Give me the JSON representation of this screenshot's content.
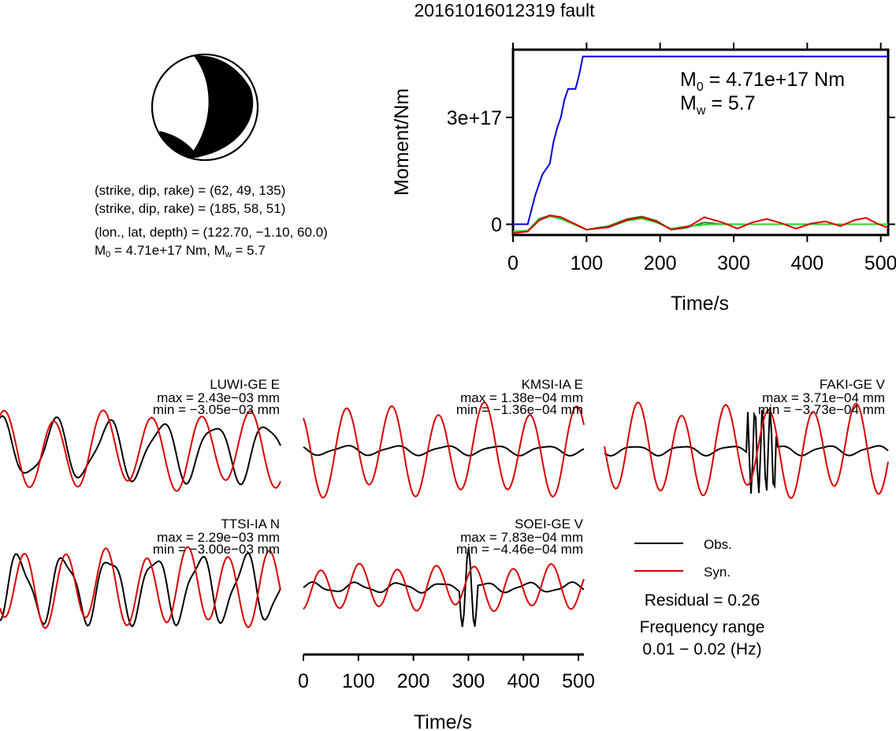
{
  "title": "20161016012319 fault",
  "info": {
    "line1": "(strike, dip, rake) = (62, 49, 135)",
    "line2": "(strike, dip, rake) = (185, 58, 51)",
    "line3": "(lon., lat, depth) = (122.70, −1.10, 60.0)",
    "m0_label": "M",
    "m0_sub": "0",
    "m0_value": " = 4.71e+17 Nm, M",
    "mw_sub": "w",
    "mw_value": " = 5.7"
  },
  "moment_labels": {
    "m0_main": "M",
    "m0_sub": "0",
    "m0_rest": " = 4.71e+17 Nm",
    "mw_main": "M",
    "mw_sub": "w",
    "mw_rest": " = 5.7"
  },
  "colors": {
    "obs": "#000000",
    "syn": "#dd0000",
    "moment": "#0000dd",
    "smooth": "#22dd22"
  },
  "chart_data": [
    {
      "type": "line",
      "id": "moment-rate",
      "xlabel": "Time/s",
      "ylabel": "Moment/Nm",
      "xlim": [
        0,
        510
      ],
      "ylim": [
        -3e+16,
        4.9e+17
      ],
      "xticks": [
        0,
        100,
        200,
        300,
        400,
        500
      ],
      "yticks": [
        {
          "v": 0,
          "label": "0"
        },
        {
          "v": 3e+17,
          "label": "3e+17"
        }
      ],
      "series": [
        {
          "key": "cumulative",
          "color": "#0000dd",
          "x": [
            0,
            20,
            30,
            40,
            50,
            55,
            60,
            65,
            70,
            75,
            80,
            85,
            90,
            95,
            100,
            510
          ],
          "y": [
            0,
            0,
            8e+16,
            1.4e+17,
            1.7e+17,
            2.3e+17,
            2.7e+17,
            3e+17,
            3.5e+17,
            3.8e+17,
            3.8e+17,
            3.8e+17,
            4.2e+17,
            4.71e+17,
            4.71e+17,
            4.71e+17
          ]
        },
        {
          "key": "rate-obs",
          "color": "#2a7a2a",
          "x": [
            0,
            20,
            35,
            50,
            65,
            80,
            100,
            130,
            155,
            175,
            195,
            215,
            235,
            260,
            285,
            300
          ],
          "y": [
            -2e+16,
            -1.8e+16,
            1.5e+16,
            2.5e+16,
            1.8e+16,
            5000000000000000.0,
            -1.5e+16,
            -5000000000000000.0,
            1.5e+16,
            2.2e+16,
            1e+16,
            -1.5e+16,
            -1e+16,
            5000000000000000.0,
            0,
            0
          ]
        },
        {
          "key": "rate-smooth",
          "color": "#22dd22",
          "x": [
            0,
            20,
            35,
            50,
            65,
            80,
            100,
            130,
            155,
            175,
            195,
            215,
            240,
            270,
            300,
            510
          ],
          "y": [
            -2e+16,
            -1.8e+16,
            1.2e+16,
            2.2e+16,
            1.5e+16,
            2000000000000000.0,
            -1.5e+16,
            -8000000000000000.0,
            1e+16,
            1.6e+16,
            5000000000000000.0,
            -1.2e+16,
            -5000000000000000.0,
            0,
            0,
            0
          ]
        },
        {
          "key": "rate-syn",
          "color": "#dd0000",
          "x": [
            0,
            20,
            35,
            50,
            65,
            80,
            100,
            130,
            155,
            175,
            195,
            215,
            240,
            260,
            285,
            305,
            325,
            345,
            365,
            385,
            405,
            425,
            445,
            465,
            480,
            495,
            510
          ],
          "y": [
            -2.5e+16,
            -2e+16,
            1e+16,
            2.5e+16,
            2e+16,
            5000000000000000.0,
            -1.5e+16,
            -8000000000000000.0,
            1.2e+16,
            2e+16,
            8000000000000000.0,
            -1.5e+16,
            -5000000000000000.0,
            2e+16,
            5000000000000000.0,
            -1.2e+16,
            5000000000000000.0,
            1.5e+16,
            3000000000000000.0,
            -1.2e+16,
            2000000000000000.0,
            8000000000000000.0,
            -5000000000000000.0,
            1.2e+16,
            1.8e+16,
            2000000000000000.0,
            -1e+16
          ]
        }
      ]
    },
    {
      "type": "line",
      "id": "waveforms",
      "xlabel": "Time/s",
      "xlim": [
        0,
        510
      ],
      "xticks": [
        0,
        100,
        200,
        300,
        400,
        500
      ],
      "stations": [
        {
          "name": "LUWI-GE E",
          "max": "max = 2.43e−03 mm",
          "min": "min = −3.05e−03 mm"
        },
        {
          "name": "KMSI-IA E",
          "max": "max = 1.38e−04 mm",
          "min": "min = −1.36e−04 mm"
        },
        {
          "name": "FAKI-GE V",
          "max": "max = 3.71e−04 mm",
          "min": "min = −3.73e−04 mm"
        },
        {
          "name": "TTSI-IA N",
          "max": "max = 2.29e−03 mm",
          "min": "min = −3.00e−03 mm"
        },
        {
          "name": "SOEI-GE V",
          "max": "max = 7.83e−04 mm",
          "min": "min = −4.46e−04 mm"
        }
      ]
    }
  ],
  "legend": {
    "obs": "Obs.",
    "syn": "Syn.",
    "residual": "Residual = 0.26",
    "freq_title": "Frequency range",
    "freq_value": "0.01 − 0.02 (Hz)"
  }
}
